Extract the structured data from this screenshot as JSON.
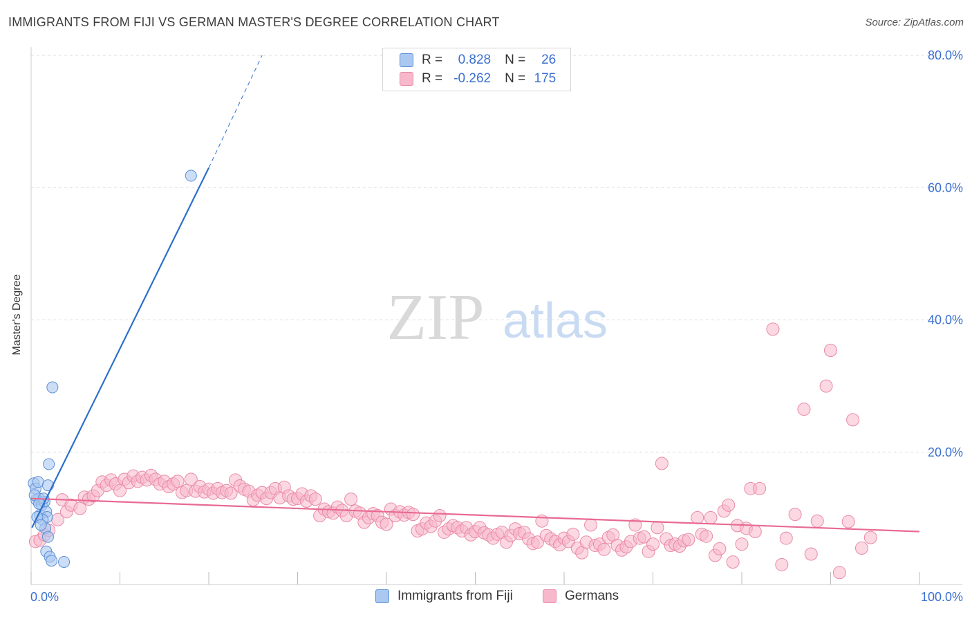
{
  "header": {
    "title": "IMMIGRANTS FROM FIJI VS GERMAN MASTER'S DEGREE CORRELATION CHART",
    "source": "Source: ZipAtlas.com"
  },
  "legend_top": {
    "series1": {
      "r_label": "R =",
      "r_value": "0.828",
      "n_label": "N =",
      "n_value": "26"
    },
    "series2": {
      "r_label": "R =",
      "r_value": "-0.262",
      "n_label": "N =",
      "n_value": "175"
    }
  },
  "legend_bottom": {
    "series1": "Immigrants from Fiji",
    "series2": "Germans"
  },
  "watermark": {
    "zip": "ZIP",
    "atlas": "atlas"
  },
  "colors": {
    "fiji_fill": "#aac8f0",
    "fiji_stroke": "#5b8fd6",
    "fiji_line": "#2b6fcc",
    "german_fill": "#f7b8cb",
    "german_stroke": "#e98aa8",
    "german_line": "#e86a93",
    "grid": "#dddddd",
    "axis_text": "#3a6fd1"
  },
  "chart_data": {
    "type": "scatter",
    "title": "IMMIGRANTS FROM FIJI VS GERMAN MASTER'S DEGREE CORRELATION CHART",
    "xlabel": "",
    "ylabel": "Master's Degree",
    "xlim": [
      0,
      100
    ],
    "ylim": [
      0,
      80
    ],
    "x_tick_labels": [
      "0.0%",
      "100.0%"
    ],
    "y_ticks": [
      20,
      40,
      60,
      80
    ],
    "y_tick_labels": [
      "20.0%",
      "40.0%",
      "60.0%",
      "80.0%"
    ],
    "grid": true,
    "series": [
      {
        "name": "Immigrants from Fiji",
        "r": 0.828,
        "n": 26,
        "trend": {
          "x": [
            0.1,
            20
          ],
          "y": [
            8.6,
            63.0
          ],
          "dashed_to": {
            "x": 26,
            "y": 80
          }
        },
        "points": [
          [
            0.3,
            15.3
          ],
          [
            0.5,
            14.5
          ],
          [
            0.8,
            15.5
          ],
          [
            0.9,
            13.0
          ],
          [
            0.6,
            12.8
          ],
          [
            0.4,
            13.5
          ],
          [
            1.2,
            12.0
          ],
          [
            1.5,
            12.5
          ],
          [
            1.0,
            10.5
          ],
          [
            1.7,
            11.0
          ],
          [
            1.8,
            10.2
          ],
          [
            1.3,
            9.8
          ],
          [
            0.7,
            10.2
          ],
          [
            1.9,
            15.0
          ],
          [
            2.0,
            18.2
          ],
          [
            2.4,
            29.8
          ],
          [
            18.0,
            61.8
          ],
          [
            1.6,
            8.5
          ],
          [
            1.1,
            9.0
          ],
          [
            1.9,
            7.2
          ],
          [
            1.7,
            5.0
          ],
          [
            2.1,
            4.2
          ],
          [
            2.3,
            3.6
          ],
          [
            3.7,
            3.4
          ],
          [
            1.4,
            13.0
          ],
          [
            0.9,
            12.2
          ]
        ]
      },
      {
        "name": "Germans",
        "r": -0.262,
        "n": 175,
        "trend": {
          "x": [
            0,
            100
          ],
          "y": [
            13.0,
            8.0
          ]
        },
        "points": [
          [
            0.5,
            6.5
          ],
          [
            1.0,
            6.7
          ],
          [
            1.5,
            7.5
          ],
          [
            2.0,
            8.2
          ],
          [
            3.0,
            9.8
          ],
          [
            3.5,
            12.8
          ],
          [
            4.0,
            11.0
          ],
          [
            4.5,
            12.0
          ],
          [
            5.5,
            11.5
          ],
          [
            6.0,
            13.2
          ],
          [
            6.5,
            12.9
          ],
          [
            7.0,
            13.4
          ],
          [
            7.5,
            14.2
          ],
          [
            8.0,
            15.5
          ],
          [
            8.5,
            15.0
          ],
          [
            9.0,
            15.8
          ],
          [
            9.5,
            15.2
          ],
          [
            10.0,
            14.2
          ],
          [
            10.5,
            15.9
          ],
          [
            11.0,
            15.4
          ],
          [
            11.5,
            16.4
          ],
          [
            12.0,
            15.6
          ],
          [
            12.5,
            16.2
          ],
          [
            13.0,
            15.8
          ],
          [
            13.5,
            16.5
          ],
          [
            14.0,
            15.9
          ],
          [
            14.5,
            15.2
          ],
          [
            15.0,
            15.6
          ],
          [
            15.5,
            14.8
          ],
          [
            16.0,
            15.2
          ],
          [
            16.5,
            15.6
          ],
          [
            17.0,
            13.9
          ],
          [
            17.5,
            14.2
          ],
          [
            18.0,
            15.9
          ],
          [
            18.5,
            14.1
          ],
          [
            19.0,
            14.8
          ],
          [
            19.5,
            14.0
          ],
          [
            20.0,
            14.4
          ],
          [
            20.5,
            13.8
          ],
          [
            21.0,
            14.5
          ],
          [
            21.5,
            13.9
          ],
          [
            22.0,
            14.2
          ],
          [
            22.5,
            13.8
          ],
          [
            23.0,
            15.8
          ],
          [
            23.5,
            14.9
          ],
          [
            24.0,
            14.4
          ],
          [
            24.5,
            14.1
          ],
          [
            25.0,
            12.8
          ],
          [
            25.5,
            13.5
          ],
          [
            26.0,
            13.9
          ],
          [
            26.5,
            13.0
          ],
          [
            27.0,
            13.9
          ],
          [
            27.5,
            14.5
          ],
          [
            28.0,
            13.1
          ],
          [
            28.5,
            14.7
          ],
          [
            29.0,
            13.4
          ],
          [
            29.5,
            12.9
          ],
          [
            30.0,
            13.0
          ],
          [
            30.5,
            13.7
          ],
          [
            31.0,
            12.6
          ],
          [
            31.5,
            13.4
          ],
          [
            32.0,
            12.9
          ],
          [
            32.5,
            10.4
          ],
          [
            33.0,
            11.4
          ],
          [
            33.5,
            11.0
          ],
          [
            34.0,
            10.8
          ],
          [
            34.5,
            11.7
          ],
          [
            35.0,
            11.2
          ],
          [
            35.5,
            10.4
          ],
          [
            36.0,
            12.9
          ],
          [
            36.5,
            11.1
          ],
          [
            37.0,
            10.8
          ],
          [
            37.5,
            9.4
          ],
          [
            38.0,
            10.1
          ],
          [
            38.5,
            10.7
          ],
          [
            39.0,
            10.4
          ],
          [
            39.5,
            9.4
          ],
          [
            40.0,
            9.1
          ],
          [
            40.5,
            11.4
          ],
          [
            41.0,
            10.4
          ],
          [
            41.5,
            11.0
          ],
          [
            42.0,
            10.5
          ],
          [
            42.5,
            10.9
          ],
          [
            43.0,
            10.6
          ],
          [
            43.5,
            8.1
          ],
          [
            44.0,
            8.4
          ],
          [
            44.5,
            9.3
          ],
          [
            45.0,
            8.8
          ],
          [
            45.5,
            9.6
          ],
          [
            46.0,
            10.4
          ],
          [
            46.5,
            7.9
          ],
          [
            47.0,
            8.4
          ],
          [
            47.5,
            8.9
          ],
          [
            48.0,
            8.6
          ],
          [
            48.5,
            8.1
          ],
          [
            49.0,
            8.6
          ],
          [
            49.5,
            7.5
          ],
          [
            50.0,
            8.0
          ],
          [
            50.5,
            8.6
          ],
          [
            51.0,
            7.8
          ],
          [
            51.5,
            7.5
          ],
          [
            52.0,
            7.0
          ],
          [
            52.5,
            7.6
          ],
          [
            53.0,
            7.9
          ],
          [
            53.5,
            6.4
          ],
          [
            54.0,
            7.4
          ],
          [
            54.5,
            8.4
          ],
          [
            55.0,
            7.7
          ],
          [
            55.5,
            7.9
          ],
          [
            56.0,
            6.9
          ],
          [
            56.5,
            6.2
          ],
          [
            57.0,
            6.4
          ],
          [
            57.5,
            9.6
          ],
          [
            58.0,
            7.4
          ],
          [
            58.5,
            6.9
          ],
          [
            59.0,
            6.5
          ],
          [
            59.5,
            6.0
          ],
          [
            60.0,
            7.0
          ],
          [
            60.5,
            6.5
          ],
          [
            61.0,
            7.6
          ],
          [
            61.5,
            5.5
          ],
          [
            62.0,
            4.8
          ],
          [
            62.5,
            6.4
          ],
          [
            63.0,
            9.0
          ],
          [
            63.5,
            5.9
          ],
          [
            64.0,
            6.1
          ],
          [
            64.5,
            5.3
          ],
          [
            65.0,
            7.1
          ],
          [
            65.5,
            7.5
          ],
          [
            66.0,
            5.9
          ],
          [
            66.5,
            5.2
          ],
          [
            67.0,
            5.7
          ],
          [
            67.5,
            6.5
          ],
          [
            68.0,
            9.0
          ],
          [
            68.5,
            7.0
          ],
          [
            69.0,
            7.2
          ],
          [
            69.5,
            5.0
          ],
          [
            70.0,
            6.1
          ],
          [
            70.5,
            8.6
          ],
          [
            71.0,
            18.3
          ],
          [
            71.5,
            6.9
          ],
          [
            72.0,
            5.9
          ],
          [
            72.5,
            6.1
          ],
          [
            73.0,
            5.8
          ],
          [
            73.5,
            6.6
          ],
          [
            74.0,
            6.8
          ],
          [
            75.0,
            10.1
          ],
          [
            75.5,
            7.6
          ],
          [
            76.0,
            7.3
          ],
          [
            76.5,
            10.1
          ],
          [
            77.0,
            4.4
          ],
          [
            77.5,
            5.4
          ],
          [
            78.0,
            11.1
          ],
          [
            78.5,
            12.0
          ],
          [
            79.0,
            3.4
          ],
          [
            79.5,
            8.9
          ],
          [
            80.0,
            6.1
          ],
          [
            80.5,
            8.5
          ],
          [
            81.0,
            14.5
          ],
          [
            81.5,
            8.0
          ],
          [
            82.0,
            14.5
          ],
          [
            83.5,
            38.6
          ],
          [
            84.5,
            3.0
          ],
          [
            85.0,
            7.0
          ],
          [
            86.0,
            10.6
          ],
          [
            87.0,
            26.5
          ],
          [
            87.8,
            4.6
          ],
          [
            88.5,
            9.6
          ],
          [
            89.5,
            30.0
          ],
          [
            90.0,
            35.4
          ],
          [
            91.0,
            1.8
          ],
          [
            92.0,
            9.5
          ],
          [
            92.5,
            24.9
          ],
          [
            93.5,
            5.5
          ],
          [
            94.5,
            7.1
          ]
        ]
      }
    ]
  }
}
